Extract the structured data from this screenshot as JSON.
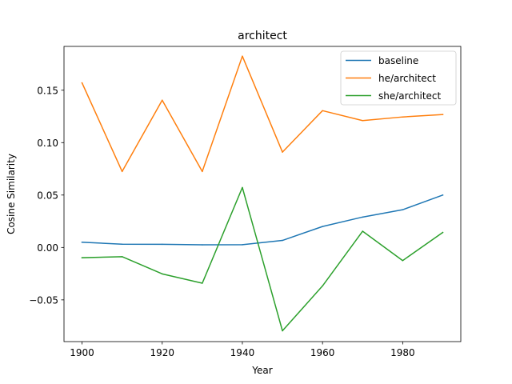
{
  "chart_data": {
    "type": "line",
    "title": "architect",
    "xlabel": "Year",
    "ylabel": "Cosine Similarity",
    "x": [
      1900,
      1910,
      1920,
      1930,
      1940,
      1950,
      1960,
      1970,
      1980,
      1990
    ],
    "xlim": [
      1895.5,
      1994.5
    ],
    "ylim": [
      -0.0898,
      0.1918
    ],
    "xticks": [
      1900,
      1920,
      1940,
      1960,
      1980
    ],
    "xtick_labels": [
      "1900",
      "1920",
      "1940",
      "1960",
      "1980"
    ],
    "yticks": [
      -0.05,
      0.0,
      0.05,
      0.1,
      0.15
    ],
    "ytick_labels": [
      "−0.05",
      "0.00",
      "0.05",
      "0.10",
      "0.15"
    ],
    "grid": false,
    "legend_position": "top-right",
    "series": [
      {
        "name": "baseline",
        "color": "#1f77b4",
        "values": [
          0.005,
          0.0031,
          0.003,
          0.0025,
          0.0026,
          0.0067,
          0.02,
          0.029,
          0.036,
          0.05
        ]
      },
      {
        "name": "he/architect",
        "color": "#ff7f0e",
        "values": [
          0.157,
          0.0725,
          0.1405,
          0.0725,
          0.1825,
          0.091,
          0.1305,
          0.121,
          0.1245,
          0.1268
        ]
      },
      {
        "name": "she/architect",
        "color": "#2ca02c",
        "values": [
          -0.0098,
          -0.0088,
          -0.0252,
          -0.0341,
          0.0572,
          -0.0795,
          -0.0367,
          0.0155,
          -0.0125,
          0.0143
        ]
      }
    ]
  }
}
